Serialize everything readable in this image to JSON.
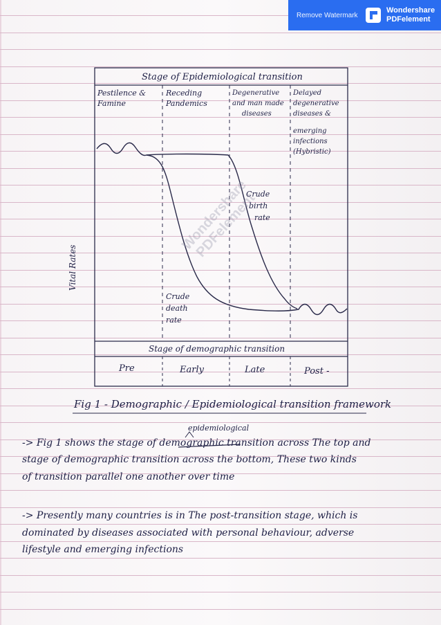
{
  "watermark": {
    "remove_label": "Remove Watermark",
    "brand_line1": "Wondershare",
    "brand_line2": "PDFelement",
    "diagonal_line1": "Wondershare",
    "diagonal_line2": "PDFelement"
  },
  "figure": {
    "top_title": "Stage of Epidemiological transition",
    "epi_stages": [
      {
        "lines": [
          "Pestilence &",
          "Famine"
        ]
      },
      {
        "lines": [
          "Receding",
          "Pandemics"
        ]
      },
      {
        "lines": [
          "Degenerative",
          "and man made",
          "diseases"
        ]
      },
      {
        "lines": [
          "Delayed",
          "degenerative",
          "diseases &",
          "emerging",
          "infections",
          "(Hybristic)"
        ]
      }
    ],
    "birth_label": [
      "Crude",
      "birth",
      "rate"
    ],
    "death_label": [
      "Crude",
      "death",
      "rate"
    ],
    "y_axis_label": "Vital Rates",
    "bottom_title": "Stage of demographic transition",
    "demo_stages": [
      "Pre",
      "Early",
      "Late",
      "Post -"
    ],
    "caption": "Fig 1 - Demographic / Epidemiological transition framework"
  },
  "text": {
    "insert_above": "epidemiological",
    "para1": [
      "-> Fig 1 shows the stage of demographic transition across The top and",
      "stage of demographic transition across the bottom, These two kinds",
      "of transition parallel one another over time"
    ],
    "para2": [
      "-> Presently many countries is in The post-transition stage, which is",
      "dominated by diseases associated with personal behaviour, adverse",
      "lifestyle and emerging infections"
    ]
  }
}
